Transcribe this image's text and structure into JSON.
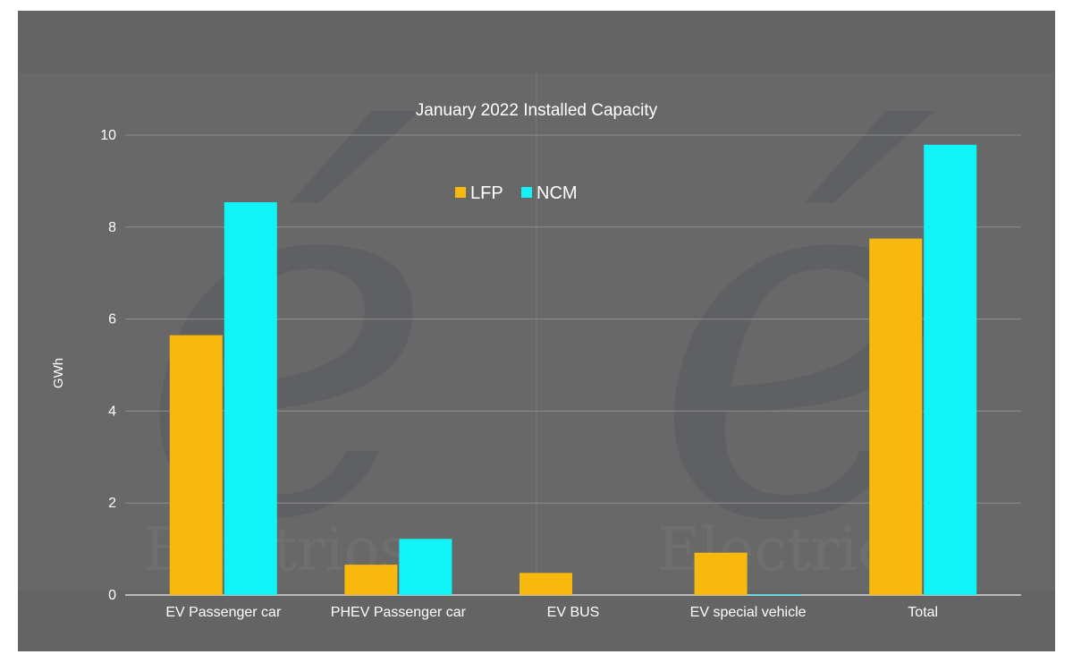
{
  "watermark": {
    "letter": "é",
    "word": "Electrios"
  },
  "colors": {
    "LFP": "#f7b90d",
    "NCM": "#10f4f7",
    "background": "#686868",
    "grid": "#8e8e8e"
  },
  "chart_data": {
    "type": "bar",
    "title": "January 2022 Installed Capacity",
    "xlabel": "",
    "ylabel": "GWh",
    "categories": [
      "EV Passenger car",
      "PHEV Passenger car",
      "EV BUS",
      "EV special vehicle",
      "Total"
    ],
    "series": [
      {
        "name": "LFP",
        "values": [
          5.65,
          0.66,
          0.48,
          0.92,
          7.75
        ]
      },
      {
        "name": "NCM",
        "values": [
          8.54,
          1.22,
          0,
          0.01,
          9.79
        ]
      }
    ],
    "ylim": [
      0,
      10
    ],
    "yticks": [
      0,
      2,
      4,
      6,
      8,
      10
    ],
    "grid": true,
    "legend_position": "top-center"
  }
}
